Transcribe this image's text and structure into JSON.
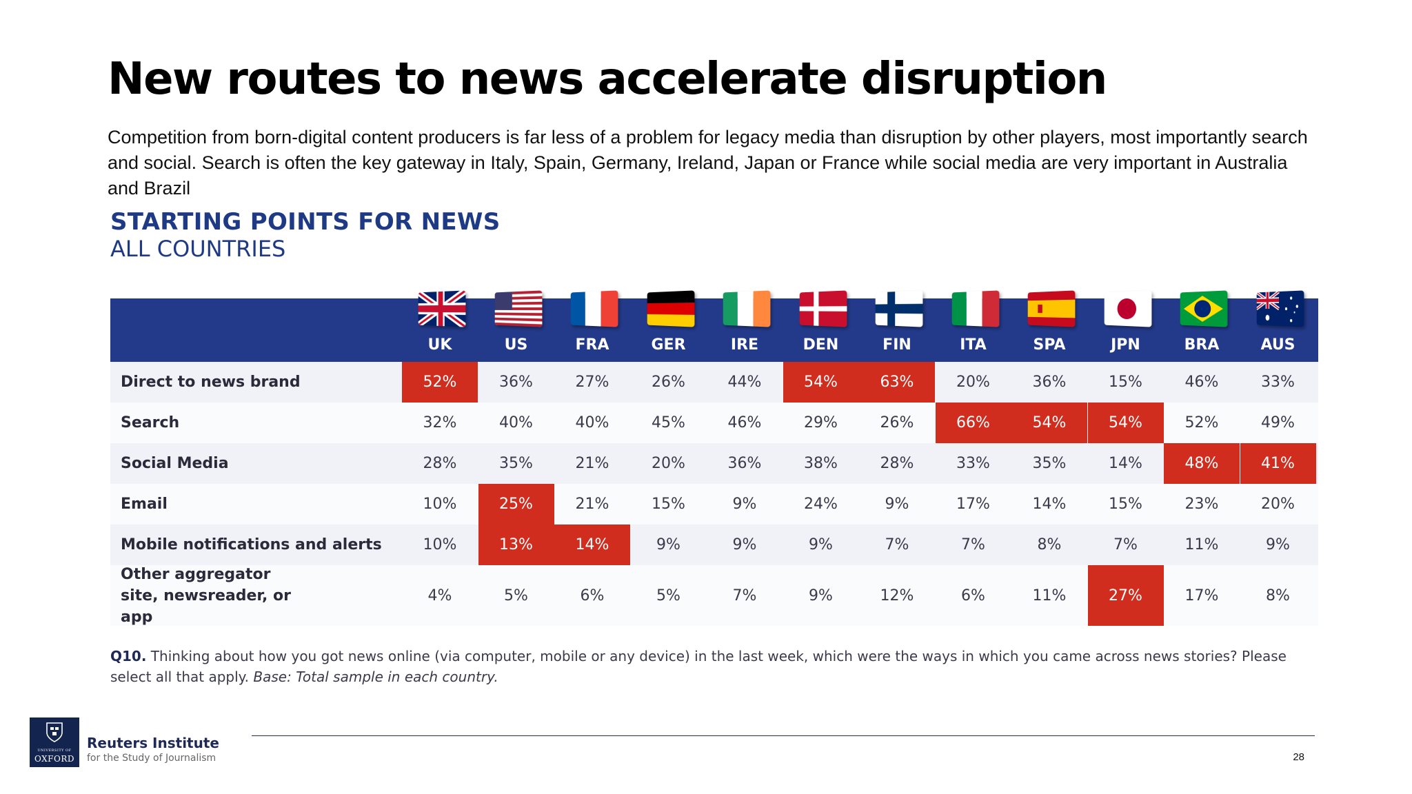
{
  "slide": {
    "title": "New routes to news accelerate disruption",
    "subtitle": "Competition from born-digital content producers is far less of a problem for legacy media than disruption by other players, most importantly search and social. Search is often the key gateway  in Italy, Spain, Germany, Ireland, Japan or France while social media are very important in Australia and Brazil",
    "page_number": "28"
  },
  "chart_data": {
    "type": "table",
    "title": "STARTING POINTS FOR NEWS",
    "subtitle": "ALL COUNTRIES",
    "columns": [
      "UK",
      "US",
      "FRA",
      "GER",
      "IRE",
      "DEN",
      "FIN",
      "ITA",
      "SPA",
      "JPN",
      "BRA",
      "AUS"
    ],
    "rows": [
      {
        "label": "Direct to news  brand",
        "values": [
          "52%",
          "36%",
          "27%",
          "26%",
          "44%",
          "54%",
          "63%",
          "20%",
          "36%",
          "15%",
          "46%",
          "33%"
        ],
        "highlighted": [
          0,
          5,
          6
        ]
      },
      {
        "label": "Search",
        "values": [
          "32%",
          "40%",
          "40%",
          "45%",
          "46%",
          "29%",
          "26%",
          "66%",
          "54%",
          "54%",
          "52%",
          "49%"
        ],
        "highlighted": [
          7,
          8,
          9
        ]
      },
      {
        "label": "Social Media",
        "values": [
          "28%",
          "35%",
          "21%",
          "20%",
          "36%",
          "38%",
          "28%",
          "33%",
          "35%",
          "14%",
          "48%",
          "41%"
        ],
        "highlighted": [
          10,
          11
        ]
      },
      {
        "label": "Email",
        "values": [
          "10%",
          "25%",
          "21%",
          "15%",
          "9%",
          "24%",
          "9%",
          "17%",
          "14%",
          "15%",
          "23%",
          "20%"
        ],
        "highlighted": [
          1
        ]
      },
      {
        "label": "Mobile notifications and alerts",
        "values": [
          "10%",
          "13%",
          "14%",
          "9%",
          "9%",
          "9%",
          "7%",
          "7%",
          "8%",
          "7%",
          "11%",
          "9%"
        ],
        "highlighted": [
          1,
          2
        ]
      },
      {
        "label": "Other aggregator site, newsreader, or app",
        "values": [
          "4%",
          "5%",
          "6%",
          "5%",
          "7%",
          "9%",
          "12%",
          "6%",
          "11%",
          "27%",
          "17%",
          "8%"
        ],
        "highlighted": [
          9
        ]
      }
    ],
    "highlight_color": "#d12d1f",
    "header_color": "#233a8b"
  },
  "footnote": {
    "q_label": "Q10.",
    "question": " Thinking about how you got news online (via computer, mobile or any device) in the last week, which were the ways in which you came across news stories? Please select all that apply. ",
    "base": "Base: Total sample in each country."
  },
  "footer": {
    "logo_small": "UNIVERSITY OF",
    "logo_oxford": "OXFORD",
    "org_name": "Reuters Institute",
    "org_sub": "for the Study of Journalism"
  },
  "flags": [
    "uk-flag-icon",
    "us-flag-icon",
    "france-flag-icon",
    "germany-flag-icon",
    "ireland-flag-icon",
    "denmark-flag-icon",
    "finland-flag-icon",
    "italy-flag-icon",
    "spain-flag-icon",
    "japan-flag-icon",
    "brazil-flag-icon",
    "australia-flag-icon"
  ]
}
